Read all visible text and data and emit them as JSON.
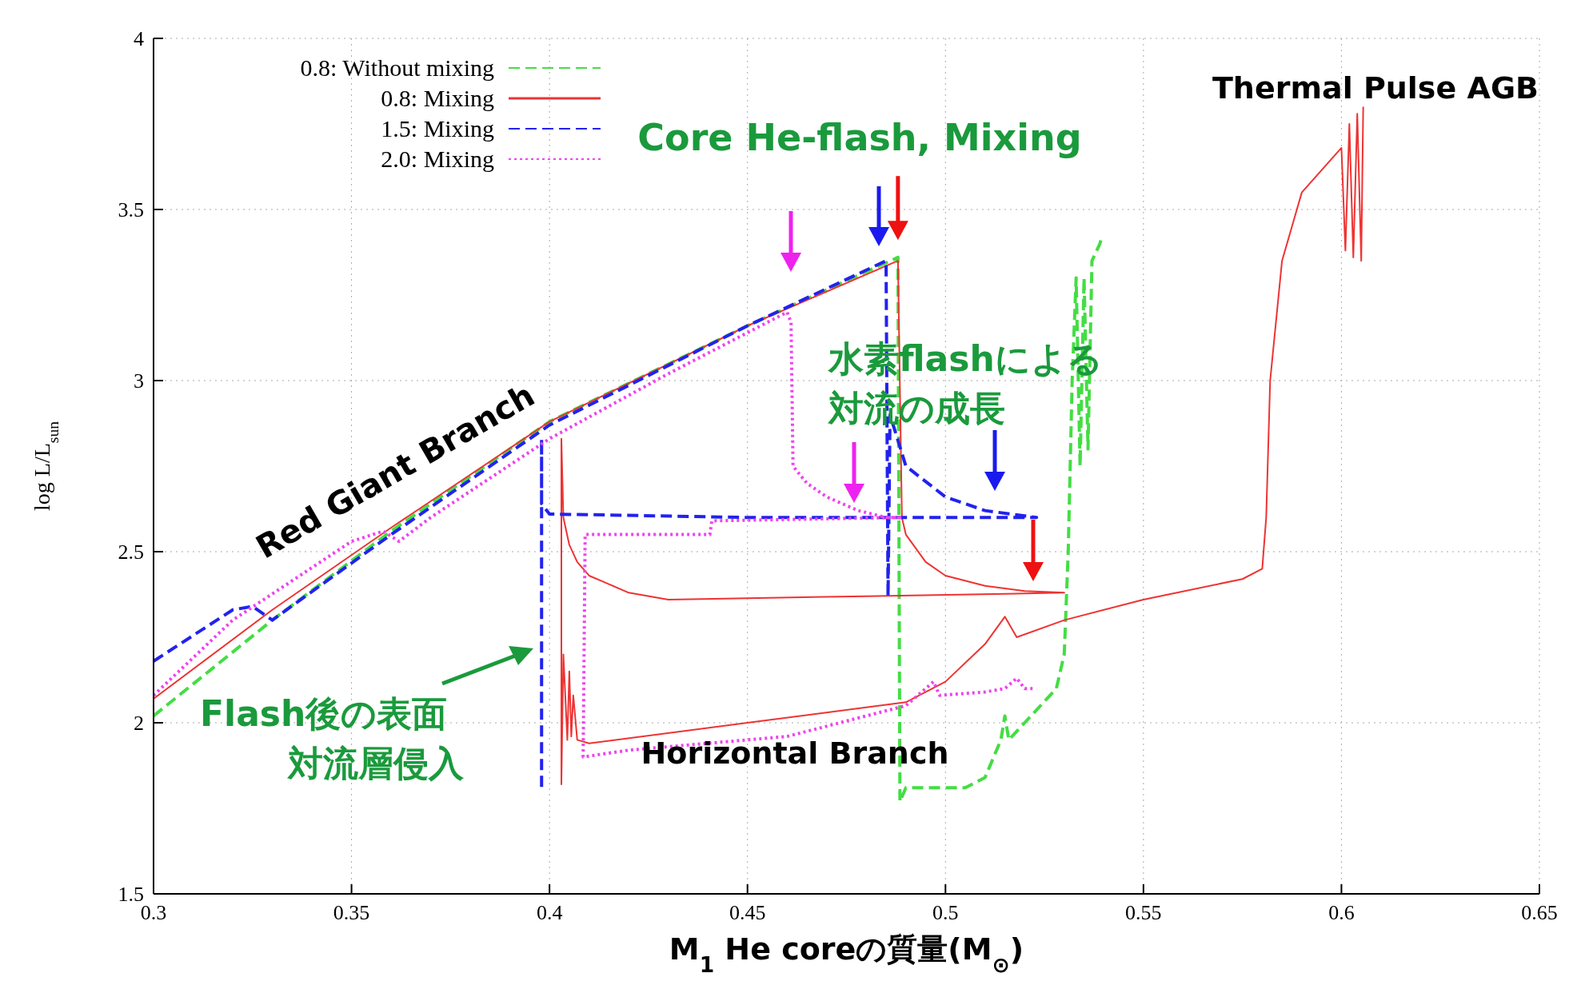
{
  "chart_data": {
    "type": "line",
    "xlabel": "M$_{1}$   He coreの質量(M$_{⊙}$)",
    "ylabel": "log L/L$_{sun}$",
    "xlim": [
      0.3,
      0.65
    ],
    "xticks": [
      0.3,
      0.35,
      0.4,
      0.45,
      0.5,
      0.55,
      0.6,
      0.65
    ],
    "ylim": [
      1.5,
      4
    ],
    "yticks": [
      1.5,
      2,
      2.5,
      3,
      3.5,
      4
    ],
    "grid": true,
    "legend": "top left",
    "series": [
      {
        "name": "0.8: Without mixing",
        "color": "#44dd44",
        "line_style": "dashed",
        "x": [
          0.3,
          0.33,
          0.36,
          0.4,
          0.45,
          0.488,
          0.4885,
          0.49,
          0.505,
          0.51,
          0.514,
          0.515,
          0.516,
          0.52,
          0.528,
          0.53,
          0.531,
          0.532,
          0.533,
          0.534,
          0.535,
          0.536,
          0.537,
          0.539,
          0.5395
        ],
        "values": [
          2.02,
          2.3,
          2.56,
          2.88,
          3.16,
          3.36,
          1.77,
          1.81,
          1.81,
          1.84,
          1.95,
          2.02,
          1.95,
          2.0,
          2.1,
          2.2,
          2.5,
          3.0,
          3.3,
          2.75,
          3.3,
          2.8,
          3.35,
          3.4,
          3.42
        ]
      },
      {
        "name": "0.8: Mixing",
        "color": "#ee3333",
        "line_style": "solid",
        "x": [
          0.3,
          0.33,
          0.36,
          0.4,
          0.45,
          0.488,
          0.489,
          0.49,
          0.495,
          0.5,
          0.51,
          0.52,
          0.53,
          0.48,
          0.43,
          0.42,
          0.41,
          0.407,
          0.405,
          0.4035,
          0.403,
          0.403,
          0.4035,
          0.4045,
          0.405,
          0.4055,
          0.406,
          0.407,
          0.41,
          0.45,
          0.49,
          0.5,
          0.51,
          0.515,
          0.518,
          0.53,
          0.55,
          0.575,
          0.58,
          0.581,
          0.582,
          0.585,
          0.59,
          0.6,
          0.601,
          0.602,
          0.603,
          0.604,
          0.605,
          0.6055
        ],
        "values": [
          2.07,
          2.33,
          2.57,
          2.88,
          3.16,
          3.35,
          2.6,
          2.55,
          2.47,
          2.43,
          2.4,
          2.385,
          2.38,
          2.37,
          2.36,
          2.38,
          2.43,
          2.47,
          2.52,
          2.6,
          2.83,
          1.82,
          2.2,
          1.95,
          2.15,
          1.96,
          2.08,
          1.95,
          1.94,
          2.0,
          2.06,
          2.12,
          2.23,
          2.31,
          2.25,
          2.3,
          2.36,
          2.42,
          2.45,
          2.6,
          3.0,
          3.35,
          3.55,
          3.68,
          3.38,
          3.75,
          3.36,
          3.78,
          3.35,
          3.8
        ]
      },
      {
        "name": "1.5: Mixing",
        "color": "#2222ee",
        "line_style": "dashed",
        "x": [
          0.3,
          0.32,
          0.325,
          0.33,
          0.36,
          0.4,
          0.45,
          0.485,
          0.4855,
          0.486,
          0.49,
          0.5,
          0.51,
          0.523,
          0.45,
          0.4,
          0.398,
          0.398,
          0.398
        ],
        "values": [
          2.18,
          2.33,
          2.34,
          2.3,
          2.55,
          2.87,
          3.16,
          3.35,
          2.37,
          2.9,
          2.75,
          2.66,
          2.62,
          2.6,
          2.6,
          2.61,
          2.64,
          2.83,
          1.8
        ]
      },
      {
        "name": "2.0: Mixing",
        "color": "#ee44ee",
        "line_style": "dotted",
        "x": [
          0.3,
          0.32,
          0.35,
          0.358,
          0.362,
          0.37,
          0.4,
          0.43,
          0.46,
          0.461,
          0.4615,
          0.465,
          0.47,
          0.478,
          0.485,
          0.489,
          0.441,
          0.4405,
          0.409,
          0.4085,
          0.42,
          0.46,
          0.48,
          0.49,
          0.497,
          0.4985,
          0.51,
          0.515,
          0.518,
          0.52,
          0.522
        ],
        "values": [
          2.08,
          2.3,
          2.53,
          2.56,
          2.53,
          2.6,
          2.83,
          3.02,
          3.2,
          3.17,
          2.75,
          2.7,
          2.66,
          2.62,
          2.6,
          2.6,
          2.59,
          2.55,
          2.55,
          1.9,
          1.92,
          1.96,
          2.02,
          2.05,
          2.12,
          2.08,
          2.09,
          2.1,
          2.13,
          2.1,
          2.1
        ]
      }
    ],
    "annotations": [
      "Red Giant Branch",
      "Horizontal Branch",
      "Thermal Pulse AGB",
      {
        "text": "Core He-flash, Mixing",
        "x": 0.488,
        "y": 3.35
      },
      "水素flashによる対流の成長",
      "Flash後の表面対流層侵入"
    ]
  }
}
